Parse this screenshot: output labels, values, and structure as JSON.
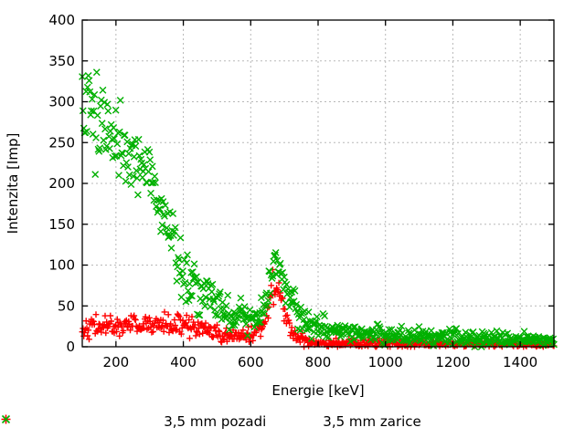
{
  "chart": {
    "background": "#ffffff",
    "frame_color": "#000000",
    "grid_color": "#b8b8b8",
    "text_color": "#000000"
  },
  "chart_data": {
    "type": "scatter",
    "title": "",
    "xlabel": "Energie [keV]",
    "ylabel": "Intenzita [Imp]",
    "xlim": [
      100,
      1500
    ],
    "ylim": [
      0,
      400
    ],
    "x_ticks": [
      200,
      400,
      600,
      800,
      1000,
      1200,
      1400
    ],
    "y_ticks": [
      0,
      50,
      100,
      150,
      200,
      250,
      300,
      350,
      400
    ],
    "grid": "dotted",
    "legend_position": "bottom-center",
    "series": [
      {
        "name": "3,5 mm pozadi",
        "marker": "plus",
        "color": "#ff0000",
        "n_points": 620,
        "seed": 42,
        "trend": [
          [
            100,
            24,
            6
          ],
          [
            150,
            25,
            6
          ],
          [
            200,
            26,
            6
          ],
          [
            260,
            27,
            6.5
          ],
          [
            320,
            27,
            6.5
          ],
          [
            380,
            27,
            6.5
          ],
          [
            430,
            25,
            7
          ],
          [
            470,
            19,
            6
          ],
          [
            510,
            14,
            5
          ],
          [
            560,
            12,
            4.5
          ],
          [
            600,
            15,
            5
          ],
          [
            625,
            22,
            6
          ],
          [
            641,
            38,
            8
          ],
          [
            655,
            60,
            9
          ],
          [
            667,
            73,
            9
          ],
          [
            678,
            70,
            9
          ],
          [
            691,
            55,
            9
          ],
          [
            705,
            35,
            8
          ],
          [
            720,
            20,
            6
          ],
          [
            740,
            11,
            4.5
          ],
          [
            765,
            7,
            3.5
          ],
          [
            800,
            5.5,
            3
          ],
          [
            900,
            4.5,
            2.5
          ],
          [
            1000,
            4,
            2.5
          ],
          [
            1200,
            3.5,
            2
          ],
          [
            1500,
            3.5,
            2
          ]
        ]
      },
      {
        "name": "3,5 mm zarice",
        "marker": "cross",
        "color": "#00b000",
        "n_points": 620,
        "seed": 1337,
        "trend": [
          [
            100,
            305,
            38
          ],
          [
            130,
            293,
            34
          ],
          [
            160,
            276,
            28
          ],
          [
            200,
            256,
            23
          ],
          [
            250,
            231,
            21
          ],
          [
            300,
            209,
            19
          ],
          [
            330,
            176,
            20
          ],
          [
            360,
            140,
            19
          ],
          [
            400,
            96,
            16
          ],
          [
            440,
            73,
            14
          ],
          [
            480,
            58,
            12
          ],
          [
            520,
            46,
            11
          ],
          [
            560,
            37,
            10
          ],
          [
            595,
            31,
            9
          ],
          [
            622,
            29,
            8
          ],
          [
            642,
            48,
            10
          ],
          [
            656,
            82,
            12
          ],
          [
            668,
            107,
            11
          ],
          [
            680,
            107,
            11
          ],
          [
            694,
            90,
            12
          ],
          [
            708,
            68,
            11
          ],
          [
            724,
            51,
            10
          ],
          [
            744,
            37,
            9
          ],
          [
            770,
            28,
            8
          ],
          [
            810,
            23,
            7
          ],
          [
            870,
            19,
            6
          ],
          [
            950,
            16,
            5.5
          ],
          [
            1050,
            13.5,
            5
          ],
          [
            1150,
            11.5,
            4.5
          ],
          [
            1250,
            10.5,
            4.5
          ],
          [
            1350,
            9.5,
            4
          ],
          [
            1500,
            8.5,
            4
          ]
        ]
      }
    ]
  }
}
